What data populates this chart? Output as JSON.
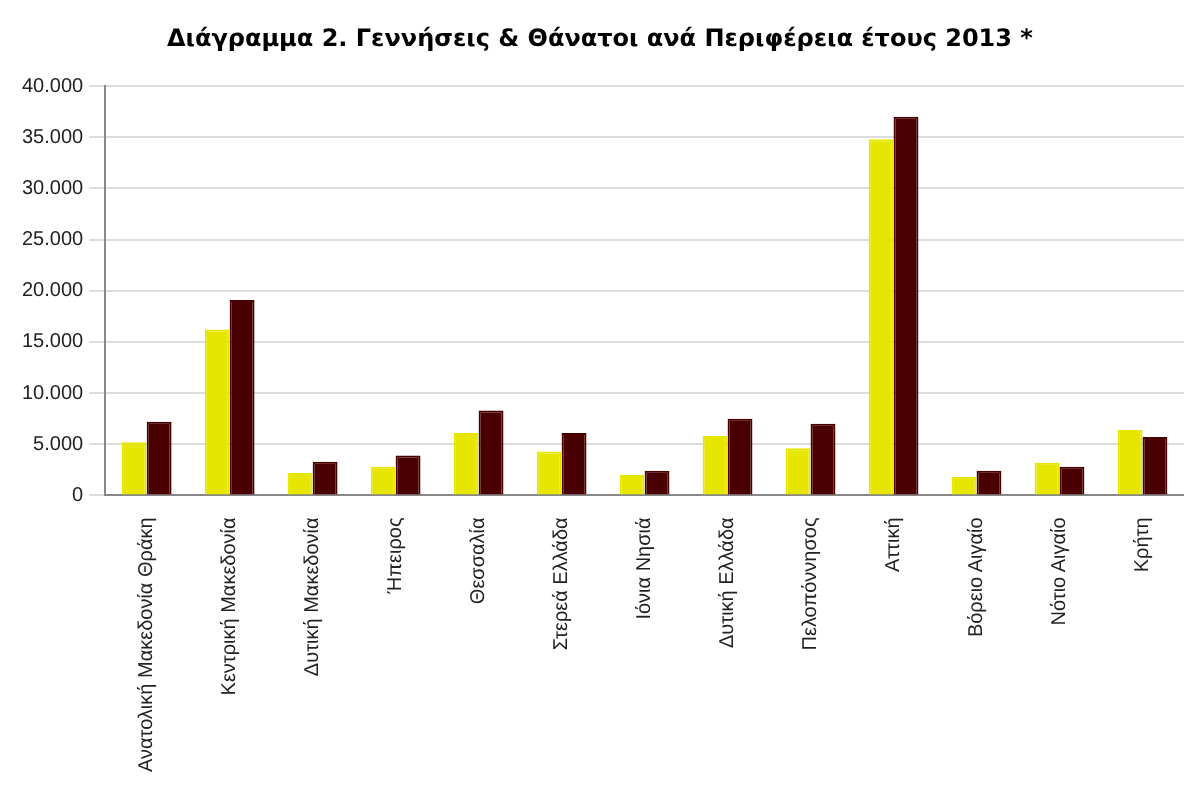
{
  "chart_data": {
    "type": "bar",
    "title": "Διάγραμμα 2.  Γεννήσεις & Θάνατοι ανά Περιφέρεια έτους 2013 *",
    "categories": [
      "Ανατολική Μακεδονία Θράκη",
      "Κεντρική Μακεδονία",
      "Δυτική Μακεδονία",
      "Ήπειρος",
      "Θεσσαλία",
      "Στερεά Ελλάδα",
      "Ιόνια Νησιά",
      "Δυτική Ελλάδα",
      "Πελοπόννησος",
      "Αττική",
      "Βόρειο Αιγαίο",
      "Νότιο Αιγαίο",
      "Κρήτη"
    ],
    "series": [
      {
        "color": "#e6e600",
        "values": [
          5200,
          16200,
          2200,
          2800,
          6100,
          4300,
          2000,
          5800,
          4600,
          34800,
          1800,
          3200,
          6400
        ]
      },
      {
        "color": "#4a0000",
        "values": [
          7200,
          19100,
          3300,
          3900,
          8300,
          6100,
          2400,
          7500,
          7000,
          37000,
          2400,
          2800,
          5700
        ]
      }
    ],
    "ylim": [
      0,
      40000
    ],
    "yticks": [
      0,
      {
        "value": 5000,
        "label": "5.000"
      },
      {
        "value": 10000,
        "label": "10.000"
      },
      {
        "value": 15000,
        "label": "15.000"
      },
      {
        "value": 20000,
        "label": "20.000"
      },
      {
        "value": 25000,
        "label": "25.000"
      },
      {
        "value": 30000,
        "label": "30.000"
      },
      {
        "value": 35000,
        "label": "35.000"
      },
      {
        "value": 40000,
        "label": "40.000"
      }
    ],
    "grid": "y",
    "legend": false
  }
}
